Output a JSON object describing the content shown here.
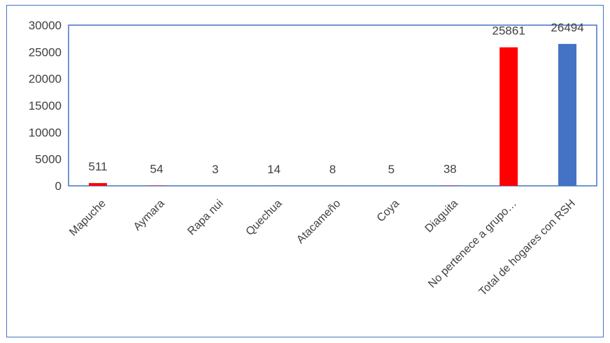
{
  "chart_data": {
    "type": "bar",
    "categories": [
      "Mapuche",
      "Aymara",
      "Rapa nui",
      "Quechua",
      "Atacameño",
      "Coya",
      "Diaguita",
      "No pertenece a grupo…",
      "Total de hogares con RSH"
    ],
    "values": [
      511,
      54,
      3,
      14,
      8,
      5,
      38,
      25861,
      26494
    ],
    "bar_colors": [
      "#ff0000",
      "#ff0000",
      "#ff0000",
      "#ff0000",
      "#ff0000",
      "#ff0000",
      "#ff0000",
      "#ff0000",
      "#4472c4"
    ],
    "data_labels": [
      "511",
      "54",
      "3",
      "14",
      "8",
      "5",
      "38",
      "25861",
      "26494"
    ],
    "yticks": [
      0,
      5000,
      10000,
      15000,
      20000,
      25000,
      30000
    ],
    "ylim": [
      0,
      30000
    ],
    "title": "",
    "xlabel": "",
    "ylabel": "",
    "grid": false,
    "plot_border_color": "#4472c4"
  }
}
